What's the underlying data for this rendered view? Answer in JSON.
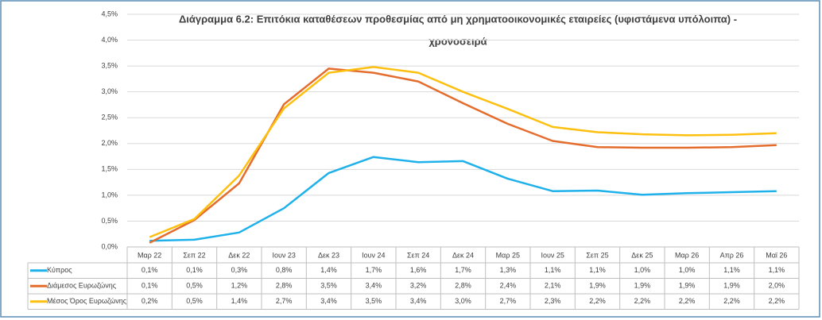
{
  "chart_data": {
    "type": "line",
    "title": [
      "Διάγραμμα 6.2: Επιτόκια καταθέσεων προθεσμίας από μη χρηματοοικονομικές εταιρείες (υφιστάμενα υπόλοιπα) -",
      "χρονοσειρά"
    ],
    "categories": [
      "Μαρ 22",
      "Σεπ 22",
      "Δεκ 22",
      "Ιουν 23",
      "Δεκ 23",
      "Ιουν 24",
      "Σεπ 24",
      "Δεκ 24",
      "Μαρ 25",
      "Ιουν 25",
      "Σεπ 25",
      "Δεκ 25",
      "Μαρ 26",
      "Απρ 26",
      "Μαϊ 26"
    ],
    "series": [
      {
        "name": "Κύπρος",
        "color": "#1fb1ea",
        "values": [
          0.12,
          0.14,
          0.28,
          0.75,
          1.43,
          1.74,
          1.64,
          1.66,
          1.32,
          1.08,
          1.09,
          1.01,
          1.04,
          1.06,
          1.08
        ],
        "value_labels": [
          "0,1%",
          "0,1%",
          "0,3%",
          "0,8%",
          "1,4%",
          "1,7%",
          "1,6%",
          "1,7%",
          "1,3%",
          "1,1%",
          "1,1%",
          "1,0%",
          "1,0%",
          "1,1%",
          "1,1%"
        ]
      },
      {
        "name": "Διάμεσος Ευρωζώνης",
        "color": "#e46c2c",
        "values": [
          0.08,
          0.52,
          1.23,
          2.76,
          3.45,
          3.37,
          3.2,
          2.78,
          2.38,
          2.05,
          1.93,
          1.92,
          1.92,
          1.93,
          1.97
        ],
        "value_labels": [
          "0,1%",
          "0,5%",
          "1,2%",
          "2,8%",
          "3,5%",
          "3,4%",
          "3,2%",
          "2,8%",
          "2,4%",
          "2,1%",
          "1,9%",
          "1,9%",
          "1,9%",
          "1,9%",
          "2,0%"
        ]
      },
      {
        "name": "Μέσος Όρος Ευρωζώνης",
        "color": "#fdc010",
        "values": [
          0.19,
          0.54,
          1.38,
          2.68,
          3.37,
          3.48,
          3.37,
          3.0,
          2.67,
          2.32,
          2.22,
          2.18,
          2.16,
          2.17,
          2.2
        ],
        "value_labels": [
          "0,2%",
          "0,5%",
          "1,4%",
          "2,7%",
          "3,4%",
          "3,5%",
          "3,4%",
          "3,0%",
          "2,7%",
          "2,3%",
          "2,2%",
          "2,2%",
          "2,2%",
          "2,2%",
          "2,2%"
        ]
      }
    ],
    "ylim": [
      0,
      4.5
    ],
    "yticks": [
      {
        "value": 0,
        "label": "0,0%"
      },
      {
        "value": 0.5,
        "label": "0,5%"
      },
      {
        "value": 1,
        "label": "1,0%"
      },
      {
        "value": 1.5,
        "label": "1,5%"
      },
      {
        "value": 2,
        "label": "2,0%"
      },
      {
        "value": 2.5,
        "label": "2,5%"
      },
      {
        "value": 3,
        "label": "3,0%"
      },
      {
        "value": 3.5,
        "label": "3,5%"
      },
      {
        "value": 4,
        "label": "4,0%"
      },
      {
        "value": 4.5,
        "label": "4,5%"
      }
    ],
    "grid": true
  }
}
